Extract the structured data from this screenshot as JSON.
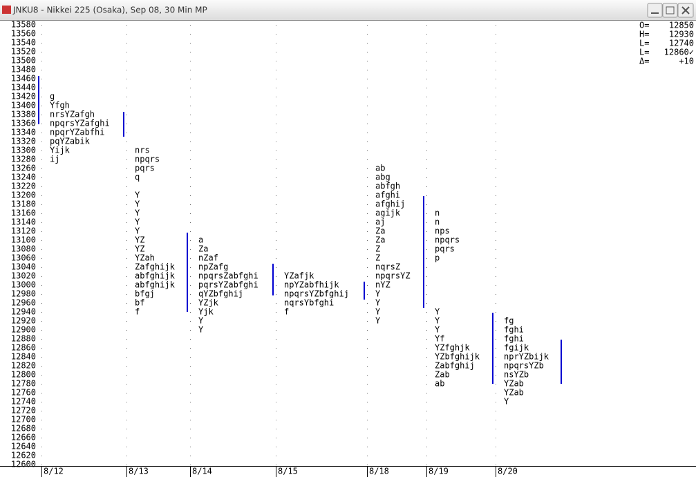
{
  "window": {
    "title": "JNKU8 - Nikkei 225 (Osaka), Sep 08, 30 Min MP"
  },
  "chart_data": {
    "type": "market-profile",
    "ylim": [
      12600,
      13580
    ],
    "yticks": [
      13580,
      13560,
      13540,
      13520,
      13500,
      13480,
      13460,
      13440,
      13420,
      13400,
      13380,
      13360,
      13340,
      13320,
      13300,
      13280,
      13260,
      13240,
      13220,
      13200,
      13180,
      13160,
      13140,
      13120,
      13100,
      13080,
      13060,
      13040,
      13020,
      13000,
      12980,
      12960,
      12940,
      12920,
      12900,
      12880,
      12860,
      12840,
      12820,
      12800,
      12780,
      12760,
      12740,
      12720,
      12700,
      12680,
      12660,
      12640,
      12620,
      12600
    ],
    "days": [
      {
        "date": "8/12",
        "rows": [
          {
            "price": 13420,
            "tpo": "g"
          },
          {
            "price": 13400,
            "tpo": "Yfgh"
          },
          {
            "price": 13380,
            "tpo": "nrsYZafgh"
          },
          {
            "price": 13360,
            "tpo": "npqrsYZafghi"
          },
          {
            "price": 13340,
            "tpo": "npqrYZabfhi"
          },
          {
            "price": 13320,
            "tpo": "pqYZabik"
          },
          {
            "price": 13300,
            "tpo": "Yijk"
          },
          {
            "price": 13280,
            "tpo": "ij"
          }
        ]
      },
      {
        "date": "8/13",
        "rows": [
          {
            "price": 13300,
            "tpo": "nrs"
          },
          {
            "price": 13280,
            "tpo": "npqrs"
          },
          {
            "price": 13260,
            "tpo": "pqrs"
          },
          {
            "price": 13240,
            "tpo": "q"
          },
          {
            "price": 13200,
            "tpo": "Y"
          },
          {
            "price": 13180,
            "tpo": "Y"
          },
          {
            "price": 13160,
            "tpo": "Y"
          },
          {
            "price": 13140,
            "tpo": "Y"
          },
          {
            "price": 13120,
            "tpo": "Y"
          },
          {
            "price": 13100,
            "tpo": "YZ"
          },
          {
            "price": 13080,
            "tpo": "YZ"
          },
          {
            "price": 13060,
            "tpo": "YZah"
          },
          {
            "price": 13040,
            "tpo": "Zafghijk"
          },
          {
            "price": 13020,
            "tpo": "abfghijk"
          },
          {
            "price": 13000,
            "tpo": "abfghijk"
          },
          {
            "price": 12980,
            "tpo": "bfgj"
          },
          {
            "price": 12960,
            "tpo": "bf"
          },
          {
            "price": 12940,
            "tpo": "f"
          }
        ]
      },
      {
        "date": "8/14",
        "rows": [
          {
            "price": 13100,
            "tpo": "a"
          },
          {
            "price": 13080,
            "tpo": "Za"
          },
          {
            "price": 13060,
            "tpo": "nZaf"
          },
          {
            "price": 13040,
            "tpo": "npZafg"
          },
          {
            "price": 13020,
            "tpo": "npqrsZabfghi"
          },
          {
            "price": 13000,
            "tpo": "pqrsYZabfghi"
          },
          {
            "price": 12980,
            "tpo": "qYZbfghij"
          },
          {
            "price": 12960,
            "tpo": "YZjk"
          },
          {
            "price": 12940,
            "tpo": "Yjk"
          },
          {
            "price": 12920,
            "tpo": "Y"
          },
          {
            "price": 12900,
            "tpo": "Y"
          }
        ]
      },
      {
        "date": "8/15",
        "rows": [
          {
            "price": 13020,
            "tpo": "YZafjk"
          },
          {
            "price": 13000,
            "tpo": "npYZabfhijk"
          },
          {
            "price": 12980,
            "tpo": "npqrsYZbfghij"
          },
          {
            "price": 12960,
            "tpo": "nqrsYbfghi"
          },
          {
            "price": 12940,
            "tpo": "f"
          }
        ]
      },
      {
        "date": "8/18",
        "rows": [
          {
            "price": 13260,
            "tpo": "ab"
          },
          {
            "price": 13240,
            "tpo": "abg"
          },
          {
            "price": 13220,
            "tpo": "abfgh"
          },
          {
            "price": 13200,
            "tpo": "afghi"
          },
          {
            "price": 13180,
            "tpo": "afghij"
          },
          {
            "price": 13160,
            "tpo": "agijk"
          },
          {
            "price": 13140,
            "tpo": "aj"
          },
          {
            "price": 13120,
            "tpo": "Za"
          },
          {
            "price": 13100,
            "tpo": "Za"
          },
          {
            "price": 13080,
            "tpo": "Z"
          },
          {
            "price": 13060,
            "tpo": "Z"
          },
          {
            "price": 13040,
            "tpo": "nqrsZ"
          },
          {
            "price": 13020,
            "tpo": "npqrsYZ"
          },
          {
            "price": 13000,
            "tpo": "nYZ"
          },
          {
            "price": 12980,
            "tpo": "Y"
          },
          {
            "price": 12960,
            "tpo": "Y"
          },
          {
            "price": 12940,
            "tpo": "Y"
          },
          {
            "price": 12920,
            "tpo": "Y"
          }
        ]
      },
      {
        "date": "8/19",
        "rows": [
          {
            "price": 13160,
            "tpo": "n"
          },
          {
            "price": 13140,
            "tpo": "n"
          },
          {
            "price": 13120,
            "tpo": "nps"
          },
          {
            "price": 13100,
            "tpo": "npqrs"
          },
          {
            "price": 13080,
            "tpo": "pqrs"
          },
          {
            "price": 13060,
            "tpo": "p"
          },
          {
            "price": 12940,
            "tpo": "Y"
          },
          {
            "price": 12920,
            "tpo": "Y"
          },
          {
            "price": 12900,
            "tpo": "Y"
          },
          {
            "price": 12880,
            "tpo": "Yf"
          },
          {
            "price": 12860,
            "tpo": "YZfghjk"
          },
          {
            "price": 12840,
            "tpo": "YZbfghijk"
          },
          {
            "price": 12820,
            "tpo": "Zabfghij"
          },
          {
            "price": 12800,
            "tpo": "Zab"
          },
          {
            "price": 12780,
            "tpo": "ab"
          }
        ]
      },
      {
        "date": "8/20",
        "rows": [
          {
            "price": 12920,
            "tpo": "fg"
          },
          {
            "price": 12900,
            "tpo": "fghi"
          },
          {
            "price": 12880,
            "tpo": "fghi"
          },
          {
            "price": 12860,
            "tpo": "fgijk"
          },
          {
            "price": 12840,
            "tpo": "nprYZbijk"
          },
          {
            "price": 12820,
            "tpo": "npqrsYZb"
          },
          {
            "price": 12800,
            "tpo": "nsYZb"
          },
          {
            "price": 12780,
            "tpo": "YZab"
          },
          {
            "price": 12760,
            "tpo": "YZab"
          },
          {
            "price": 12740,
            "tpo": "Y"
          }
        ]
      }
    ]
  },
  "stats": [
    {
      "label": "O=",
      "value": "12850"
    },
    {
      "label": "H=",
      "value": "12930"
    },
    {
      "label": "L=",
      "value": "12740"
    },
    {
      "label": "L=",
      "value": "12860✓"
    },
    {
      "label": "Δ=",
      "value": "+10"
    }
  ]
}
